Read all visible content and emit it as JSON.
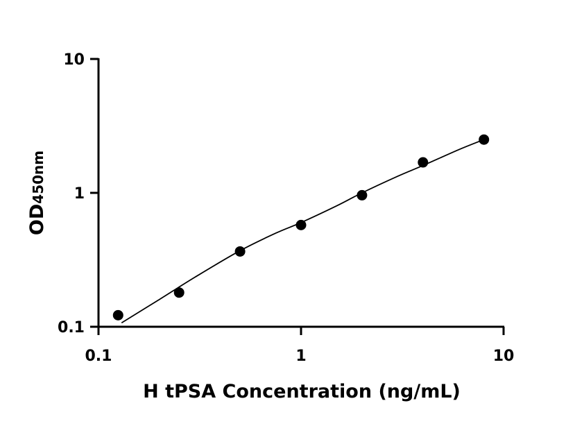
{
  "chart_data": {
    "type": "scatter",
    "xlabel": "H tPSA Concentration (ng/mL)",
    "ylabel_main": "OD",
    "ylabel_sub": "450nm",
    "xscale": "log",
    "yscale": "log",
    "xlim": [
      0.1,
      10
    ],
    "ylim": [
      0.1,
      10
    ],
    "x_ticks": [
      0.1,
      1,
      10
    ],
    "x_tick_labels": [
      "0.1",
      "1",
      "10"
    ],
    "y_ticks": [
      0.1,
      1,
      10
    ],
    "y_tick_labels": [
      "0.1",
      "1",
      "10"
    ],
    "grid": false,
    "series": [
      {
        "x": [
          0.125,
          0.25,
          0.5,
          1,
          2,
          4,
          8
        ],
        "y": [
          0.122,
          0.18,
          0.365,
          0.575,
          0.96,
          1.69,
          2.5
        ],
        "marker": "circle",
        "color": "#000000"
      }
    ],
    "fit_curve": {
      "x": [
        0.13,
        0.2,
        0.3,
        0.5,
        0.75,
        1,
        1.5,
        2,
        3,
        4,
        6,
        8
      ],
      "y": [
        0.107,
        0.16,
        0.235,
        0.37,
        0.5,
        0.6,
        0.8,
        1.0,
        1.33,
        1.6,
        2.1,
        2.5
      ],
      "color": "#000000"
    }
  }
}
